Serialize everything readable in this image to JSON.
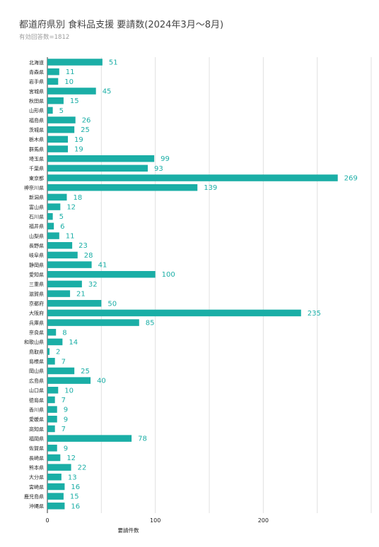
{
  "header": {
    "title": "都道府県別 食料品支援 要請数(2024年3月～8月)",
    "subtitle": "有効回答数=1812"
  },
  "colors": {
    "bar": "#1aaea6",
    "value_label": "#1aaea6",
    "grid": "#e0e0e0",
    "axis_text": "#222222"
  },
  "chart_data": {
    "type": "bar",
    "orientation": "horizontal",
    "title": "都道府県別 食料品支援 要請数(2024年3月～8月)",
    "subtitle": "有効回答数=1812",
    "xlabel": "要請件数",
    "ylabel": "",
    "xlim": [
      0,
      300
    ],
    "x_ticks": [
      0,
      100,
      200
    ],
    "grid": true,
    "legend": "none",
    "categories": [
      "北海道",
      "青森県",
      "岩手県",
      "宮城県",
      "秋田県",
      "山形県",
      "福島県",
      "茨城県",
      "栃木県",
      "群馬県",
      "埼玉県",
      "千葉県",
      "東京都",
      "神奈川県",
      "新潟県",
      "富山県",
      "石川県",
      "福井県",
      "山梨県",
      "長野県",
      "岐阜県",
      "静岡県",
      "愛知県",
      "三重県",
      "滋賀県",
      "京都府",
      "大阪府",
      "兵庫県",
      "奈良県",
      "和歌山県",
      "鳥取県",
      "島根県",
      "岡山県",
      "広島県",
      "山口県",
      "徳島県",
      "香川県",
      "愛媛県",
      "高知県",
      "福岡県",
      "佐賀県",
      "長崎県",
      "熊本県",
      "大分県",
      "宮崎県",
      "鹿児島県",
      "沖縄県"
    ],
    "values": [
      51,
      11,
      10,
      45,
      15,
      5,
      26,
      25,
      19,
      19,
      99,
      93,
      269,
      139,
      18,
      12,
      5,
      6,
      11,
      23,
      28,
      41,
      100,
      32,
      21,
      50,
      235,
      85,
      8,
      14,
      2,
      7,
      25,
      40,
      10,
      7,
      9,
      9,
      7,
      78,
      9,
      12,
      22,
      13,
      16,
      15,
      16
    ]
  }
}
